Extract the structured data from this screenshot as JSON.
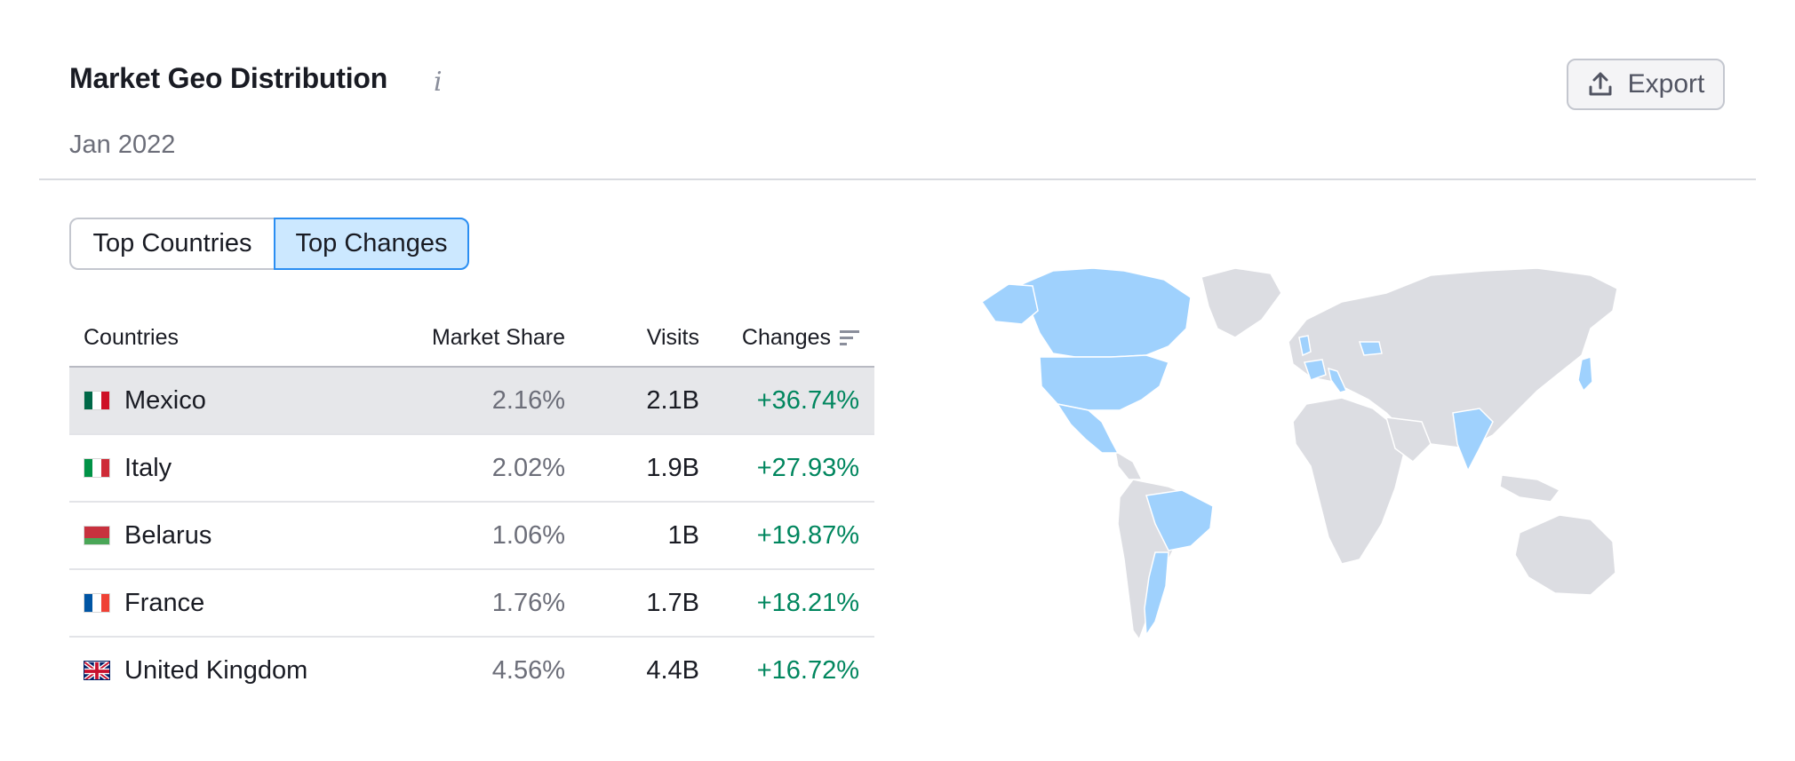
{
  "header": {
    "title": "Market Geo Distribution",
    "info_icon": "i",
    "subtitle": "Jan 2022",
    "export_label": "Export"
  },
  "tabs": [
    {
      "label": "Top Countries",
      "active": false
    },
    {
      "label": "Top Changes",
      "active": true
    }
  ],
  "table": {
    "columns": [
      "Countries",
      "Market Share",
      "Visits",
      "Changes"
    ],
    "rows": [
      {
        "country": "Mexico",
        "share": "2.16%",
        "visits": "2.1B",
        "change": "+36.74%",
        "flag": [
          "#006847",
          "#ffffff",
          "#ce1126"
        ]
      },
      {
        "country": "Italy",
        "share": "2.02%",
        "visits": "1.9B",
        "change": "+27.93%",
        "flag": [
          "#009246",
          "#ffffff",
          "#ce2b37"
        ]
      },
      {
        "country": "Belarus",
        "share": "1.06%",
        "visits": "1B",
        "change": "+19.87%",
        "flag": [
          "#c8313e",
          "#c8313e",
          "#4aa657"
        ]
      },
      {
        "country": "France",
        "share": "1.76%",
        "visits": "1.7B",
        "change": "+18.21%",
        "flag": [
          "#0055a4",
          "#ffffff",
          "#ef4135"
        ]
      },
      {
        "country": "United Kingdom",
        "share": "4.56%",
        "visits": "4.4B",
        "change": "+16.72%",
        "flag": [
          "#012169",
          "#ffffff",
          "#c8102e"
        ]
      }
    ]
  },
  "colors": {
    "highlight_map": "#9fd1fd",
    "base_map": "#dcdde2",
    "positive": "#00865e",
    "active_tab_bg": "#cce8ff",
    "active_tab_border": "#2b8ef2"
  }
}
